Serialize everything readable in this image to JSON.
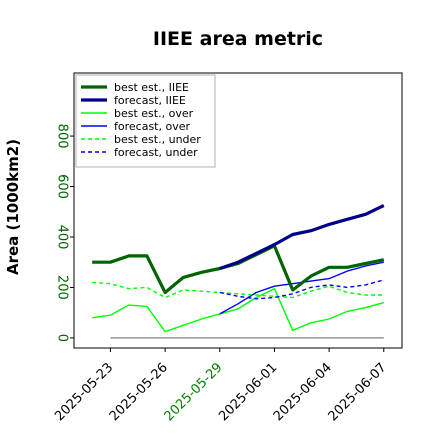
{
  "chart_data": {
    "type": "line",
    "title": "IIEE area metric",
    "xlabel": "",
    "ylabel": "Area (1000km2)",
    "ylim": [
      -40,
      1050
    ],
    "xlim": [
      "2025-05-21",
      "2025-06-08"
    ],
    "grid": false,
    "legend_placement": "top-left",
    "yticks": [
      0,
      200,
      400,
      600,
      800
    ],
    "ytick_labels": [
      "0",
      "200",
      "400",
      "600",
      "800"
    ],
    "xticks": [
      "2025-05-23",
      "2025-05-26",
      "2025-05-29",
      "2025-06-01",
      "2025-06-04",
      "2025-06-07"
    ],
    "xtick_labels": [
      "2025-05-23",
      "2025-05-26",
      "2025-05-29",
      "2025-06-01",
      "2025-06-04",
      "2025-06-07"
    ],
    "highlighted_xtick": "2025-05-29",
    "colors": {
      "dark_green": "#006400",
      "dark_blue": "#00008b",
      "green": "#00ff00",
      "blue": "#0000ff",
      "highlight": "#008000",
      "ytick_label": "#006400",
      "baseline": "#808080"
    },
    "baseline": 0,
    "series": [
      {
        "name": "best est., IIEE",
        "color": "#006400",
        "style": "solid",
        "width": "thick",
        "x": [
          "2025-05-22",
          "2025-05-23",
          "2025-05-24",
          "2025-05-25",
          "2025-05-26",
          "2025-05-27",
          "2025-05-28",
          "2025-05-29",
          "2025-05-30",
          "2025-05-31",
          "2025-06-01",
          "2025-06-02",
          "2025-06-03",
          "2025-06-04",
          "2025-06-05",
          "2025-06-06",
          "2025-06-07"
        ],
        "values": [
          300,
          300,
          325,
          325,
          180,
          240,
          260,
          275,
          295,
          330,
          365,
          190,
          245,
          280,
          280,
          295,
          310
        ]
      },
      {
        "name": "forecast, IIEE",
        "color": "#00008b",
        "style": "solid",
        "width": "thick",
        "x": [
          "2025-05-29",
          "2025-05-30",
          "2025-05-31",
          "2025-06-01",
          "2025-06-02",
          "2025-06-03",
          "2025-06-04",
          "2025-06-05",
          "2025-06-06",
          "2025-06-07"
        ],
        "values": [
          275,
          300,
          335,
          370,
          410,
          425,
          450,
          470,
          490,
          525
        ]
      },
      {
        "name": "best est., over",
        "color": "#00ff00",
        "style": "solid",
        "width": "thin",
        "x": [
          "2025-05-22",
          "2025-05-23",
          "2025-05-24",
          "2025-05-25",
          "2025-05-26",
          "2025-05-27",
          "2025-05-28",
          "2025-05-29",
          "2025-05-30",
          "2025-05-31",
          "2025-06-01",
          "2025-06-02",
          "2025-06-03",
          "2025-06-04",
          "2025-06-05",
          "2025-06-06",
          "2025-06-07"
        ],
        "values": [
          80,
          90,
          130,
          125,
          25,
          50,
          75,
          95,
          115,
          160,
          195,
          30,
          60,
          75,
          105,
          120,
          140
        ]
      },
      {
        "name": "forecast, over",
        "color": "#0000ff",
        "style": "solid",
        "width": "thin",
        "x": [
          "2025-05-29",
          "2025-05-30",
          "2025-05-31",
          "2025-06-01",
          "2025-06-02",
          "2025-06-03",
          "2025-06-04",
          "2025-06-05",
          "2025-06-06",
          "2025-06-07"
        ],
        "values": [
          95,
          135,
          180,
          205,
          215,
          225,
          235,
          265,
          285,
          300
        ]
      },
      {
        "name": "best est., under",
        "color": "#00ff00",
        "style": "dashed",
        "width": "thin",
        "x": [
          "2025-05-22",
          "2025-05-23",
          "2025-05-24",
          "2025-05-25",
          "2025-05-26",
          "2025-05-27",
          "2025-05-28",
          "2025-05-29",
          "2025-05-30",
          "2025-05-31",
          "2025-06-01",
          "2025-06-02",
          "2025-06-03",
          "2025-06-04",
          "2025-06-05",
          "2025-06-06",
          "2025-06-07"
        ],
        "values": [
          220,
          215,
          195,
          200,
          160,
          190,
          185,
          180,
          175,
          170,
          165,
          160,
          185,
          205,
          180,
          170,
          170
        ]
      },
      {
        "name": "forecast, under",
        "color": "#0000ff",
        "style": "dashed",
        "width": "thin",
        "x": [
          "2025-05-29",
          "2025-05-30",
          "2025-05-31",
          "2025-06-01",
          "2025-06-02",
          "2025-06-03",
          "2025-06-04",
          "2025-06-05",
          "2025-06-06",
          "2025-06-07"
        ],
        "values": [
          180,
          165,
          155,
          160,
          175,
          200,
          210,
          200,
          210,
          230
        ]
      }
    ]
  }
}
